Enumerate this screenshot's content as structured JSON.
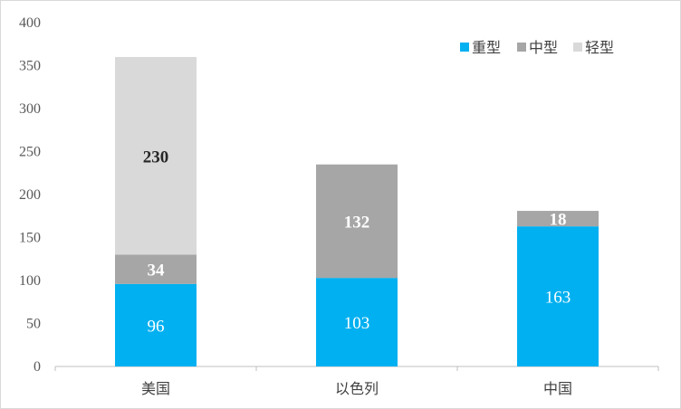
{
  "chart_data": {
    "type": "bar",
    "stacked": true,
    "categories": [
      "美国",
      "以色列",
      "中国"
    ],
    "series": [
      {
        "name": "重型",
        "values": [
          96,
          103,
          163
        ],
        "color": "#00b0f0",
        "label_color": "#ffffff",
        "label_bold": false
      },
      {
        "name": "中型",
        "values": [
          34,
          132,
          18
        ],
        "color": "#a6a6a6",
        "label_color": "#ffffff",
        "label_bold": true
      },
      {
        "name": "轻型",
        "values": [
          230,
          null,
          null
        ],
        "color": "#d9d9d9",
        "label_color": "#262626",
        "label_bold": true
      }
    ],
    "ylim": [
      0,
      400
    ],
    "yticks": [
      0,
      50,
      100,
      150,
      200,
      250,
      300,
      350,
      400
    ],
    "grid": false,
    "legend_position": "top-right"
  }
}
